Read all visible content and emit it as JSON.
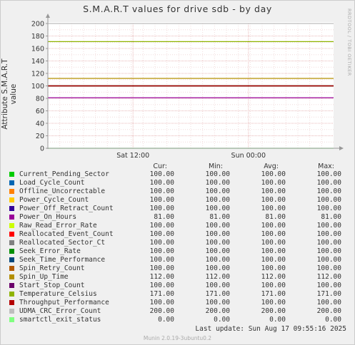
{
  "title": "S.M.A.R.T values for drive sdb - by day",
  "ylabel": "Attribute S.M.A.R.T value",
  "watermark": "RRDTOOL / TOBI OETIKER",
  "footer": "Munin 2.0.19-3ubuntu0.2",
  "last_update": "Last update:  Sun Aug 17 09:55:16 2025",
  "headers": {
    "cur": "Cur:",
    "min": "Min:",
    "avg": "Avg:",
    "max": "Max:"
  },
  "chart_data": {
    "type": "line",
    "title": "S.M.A.R.T values for drive sdb - by day",
    "xlabel": "",
    "ylabel": "Attribute S.M.A.R.T value",
    "ylim": [
      0,
      200
    ],
    "yticks": [
      0,
      20,
      40,
      60,
      80,
      100,
      120,
      140,
      160,
      180,
      200
    ],
    "xticks": [
      {
        "label": "Sat 12:00",
        "frac": 0.298
      },
      {
        "label": "Sun 00:00",
        "frac": 0.702
      }
    ],
    "grid": true,
    "series": [
      {
        "name": "Current_Pending_Sector",
        "color": "#00cc00",
        "cur": "100.00",
        "min": "100.00",
        "avg": "100.00",
        "max": "100.00",
        "value": 100
      },
      {
        "name": "Load_Cycle_Count",
        "color": "#0066b3",
        "cur": "100.00",
        "min": "100.00",
        "avg": "100.00",
        "max": "100.00",
        "value": 100
      },
      {
        "name": "Offline_Uncorrectable",
        "color": "#ff8000",
        "cur": "100.00",
        "min": "100.00",
        "avg": "100.00",
        "max": "100.00",
        "value": 100
      },
      {
        "name": "Power_Cycle_Count",
        "color": "#ffcc00",
        "cur": "100.00",
        "min": "100.00",
        "avg": "100.00",
        "max": "100.00",
        "value": 100
      },
      {
        "name": "Power_Off_Retract_Count",
        "color": "#330099",
        "cur": "100.00",
        "min": "100.00",
        "avg": "100.00",
        "max": "100.00",
        "value": 100
      },
      {
        "name": "Power_On_Hours",
        "color": "#990099",
        "cur": "81.00",
        "min": "81.00",
        "avg": "81.00",
        "max": "81.00",
        "value": 81
      },
      {
        "name": "Raw_Read_Error_Rate",
        "color": "#ccff00",
        "cur": "100.00",
        "min": "100.00",
        "avg": "100.00",
        "max": "100.00",
        "value": 100
      },
      {
        "name": "Reallocated_Event_Count",
        "color": "#ff0000",
        "cur": "100.00",
        "min": "100.00",
        "avg": "100.00",
        "max": "100.00",
        "value": 100
      },
      {
        "name": "Reallocated_Sector_Ct",
        "color": "#808080",
        "cur": "100.00",
        "min": "100.00",
        "avg": "100.00",
        "max": "100.00",
        "value": 100
      },
      {
        "name": "Seek_Error_Rate",
        "color": "#008f00",
        "cur": "100.00",
        "min": "100.00",
        "avg": "100.00",
        "max": "100.00",
        "value": 100
      },
      {
        "name": "Seek_Time_Performance",
        "color": "#00487d",
        "cur": "100.00",
        "min": "100.00",
        "avg": "100.00",
        "max": "100.00",
        "value": 100
      },
      {
        "name": "Spin_Retry_Count",
        "color": "#b35a00",
        "cur": "100.00",
        "min": "100.00",
        "avg": "100.00",
        "max": "100.00",
        "value": 100
      },
      {
        "name": "Spin_Up_Time",
        "color": "#b38f00",
        "cur": "112.00",
        "min": "112.00",
        "avg": "112.00",
        "max": "112.00",
        "value": 112
      },
      {
        "name": "Start_Stop_Count",
        "color": "#6b006b",
        "cur": "100.00",
        "min": "100.00",
        "avg": "100.00",
        "max": "100.00",
        "value": 100
      },
      {
        "name": "Temperature_Celsius",
        "color": "#8fb300",
        "cur": "171.00",
        "min": "171.00",
        "avg": "171.00",
        "max": "171.00",
        "value": 171
      },
      {
        "name": "Throughput_Performance",
        "color": "#b30000",
        "cur": "100.00",
        "min": "100.00",
        "avg": "100.00",
        "max": "100.00",
        "value": 100
      },
      {
        "name": "UDMA_CRC_Error_Count",
        "color": "#bebebe",
        "cur": "200.00",
        "min": "200.00",
        "avg": "200.00",
        "max": "200.00",
        "value": 200
      },
      {
        "name": "smartctl_exit_status",
        "color": "#80ff80",
        "cur": "0.00",
        "min": "0.00",
        "avg": "0.00",
        "max": "0.00",
        "value": 0
      }
    ]
  }
}
